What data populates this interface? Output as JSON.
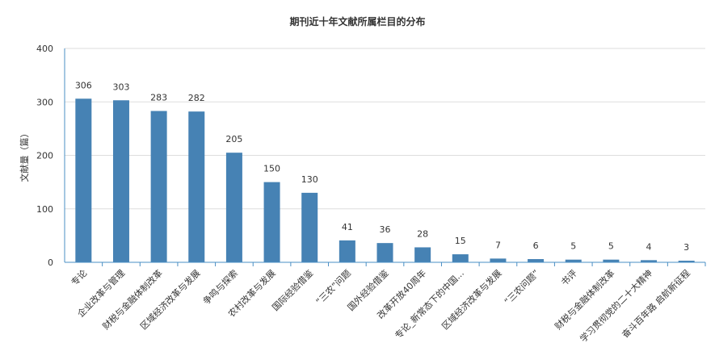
{
  "chart_data": {
    "type": "bar",
    "title": "期刊近十年文献所属栏目的分布",
    "ylabel": "文献量（篇）",
    "xlabel": "",
    "ylim": [
      0,
      400
    ],
    "yticks": [
      0,
      100,
      200,
      300,
      400
    ],
    "grid": true,
    "colors": {
      "bar": "#4682b4",
      "grid": "#dddddd",
      "axis": "#4a8fc4"
    },
    "categories": [
      "专论",
      "企业改革与管理",
      "财税与金融体制改革",
      "区域经济改革与发展",
      "争鸣与探索",
      "农村改革与发展",
      "国际经验借鉴",
      "“三农”问题",
      "国外经验借鉴",
      "改革开放40周年",
      "专论_新常态下的中国...",
      "区域经济改革与发展",
      "“三农问题”",
      "书评",
      "财税与金融体制改革",
      "学习贯彻党的二十大精神",
      "奋斗百年路 启航新征程"
    ],
    "values": [
      306,
      303,
      283,
      282,
      205,
      150,
      130,
      41,
      36,
      28,
      15,
      7,
      6,
      5,
      5,
      4,
      3
    ]
  }
}
